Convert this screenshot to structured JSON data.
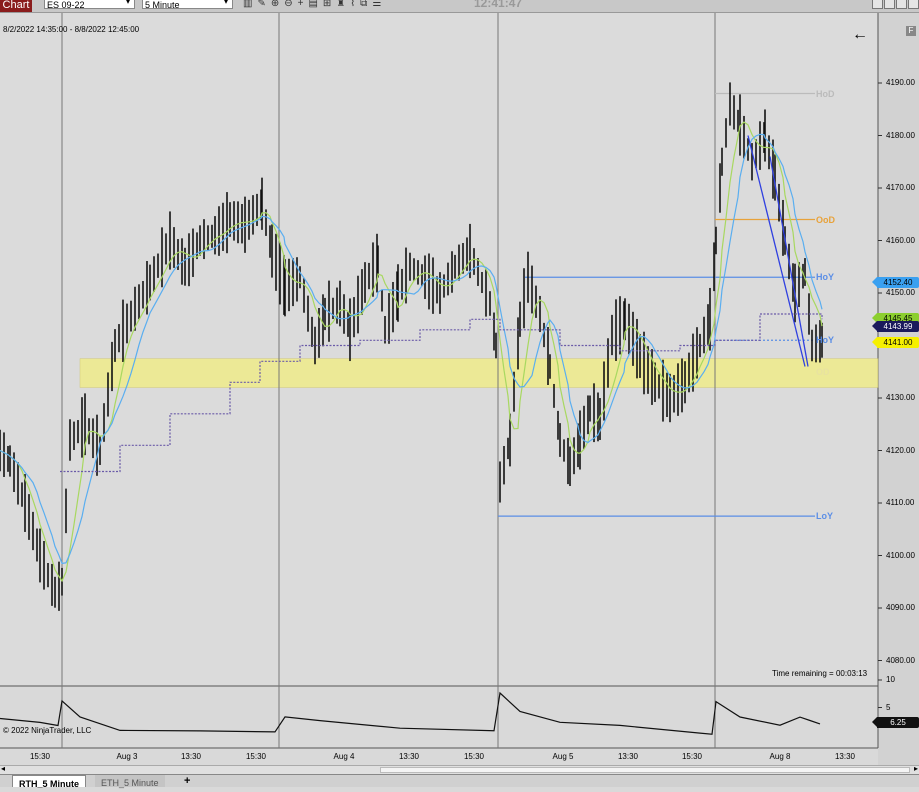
{
  "toolbar": {
    "title": "Chart",
    "instrument": "ES 09-22",
    "interval": "5 Minute",
    "clock": "12:41:47",
    "tools": [
      "bar-style-icon",
      "pencil-icon",
      "zoom-in-icon",
      "zoom-out-icon",
      "crosshair-icon",
      "data-box-icon",
      "properties-icon",
      "strategies-icon",
      "drawing-tools-icon",
      "snapshot-icon",
      "indicators-icon"
    ]
  },
  "chart": {
    "date_range": "8/2/2022 14:35:00 - 8/8/2022 12:45:00",
    "time_remaining": "Time remaining = 00:03:13",
    "copyright": "© 2022 NinjaTrader, LLC",
    "price_axis": [
      "4190.00",
      "4180.00",
      "4170.00",
      "4160.00",
      "4150.00",
      "4140.00",
      "4130.00",
      "4120.00",
      "4110.00",
      "4100.00",
      "4090.00",
      "4080.00"
    ],
    "indicator_axis": [
      "10",
      "5"
    ],
    "time_axis": [
      "15:30",
      "Aug 3",
      "13:30",
      "15:30",
      "Aug 4",
      "13:30",
      "15:30",
      "Aug 5",
      "13:30",
      "15:30",
      "Aug 8",
      "13:30"
    ],
    "levels": [
      {
        "label": "HoD",
        "price": 4188,
        "color": "#bbbbbb"
      },
      {
        "label": "OoD",
        "price": 4164,
        "color": "#e8a23a"
      },
      {
        "label": "HoY",
        "price": 4153,
        "color": "#5b8ee6"
      },
      {
        "label": "LoY",
        "price": 4107.5,
        "color": "#5b8ee6"
      },
      {
        "label": "HoY",
        "price": 4141,
        "color": "#5b8ee6"
      },
      {
        "label": "OD",
        "price": 4135,
        "color": "#e8e2a0"
      }
    ],
    "price_tags": [
      {
        "value": "4152.40",
        "bg": "#3aa0f0",
        "fg": "#000000"
      },
      {
        "value": "4145.45",
        "bg": "#8ccf2f",
        "fg": "#000000"
      },
      {
        "value": "4143.99",
        "bg": "#1a1a5c",
        "fg": "#ffffff"
      },
      {
        "value": "4141.00",
        "bg": "#f6f000",
        "fg": "#000000"
      }
    ],
    "indicator_tag": {
      "value": "6.25"
    },
    "zone": {
      "from": 4132,
      "to": 4137.5,
      "color": "#f0ec8a"
    }
  },
  "tabs": [
    {
      "label": "RTH_5 Minute",
      "active": true
    },
    {
      "label": "ETH_5 Minute",
      "active": false
    }
  ],
  "add_tab": "+"
}
